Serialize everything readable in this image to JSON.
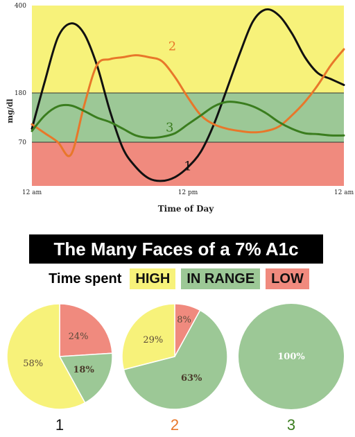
{
  "chart_data": [
    {
      "type": "line",
      "title": "",
      "xlabel": "Time of Day",
      "ylabel": "mg/dl",
      "x_ticks": [
        "12 am",
        "12 pm",
        "12 am"
      ],
      "y_ticks": [
        70,
        180,
        400
      ],
      "bands": [
        {
          "name": "LOW",
          "from": 0,
          "to": 70,
          "color": "#f08a7e"
        },
        {
          "name": "IN RANGE",
          "from": 70,
          "to": 180,
          "color": "#9cc896"
        },
        {
          "name": "HIGH",
          "from": 180,
          "to": 400,
          "color": "#f7f27a"
        }
      ],
      "series": [
        {
          "label": "1",
          "color": "#111111",
          "label_at": [
            12.0,
            25
          ],
          "x": [
            0,
            1,
            2,
            3,
            4,
            5,
            6,
            7,
            8,
            9,
            10,
            11,
            12,
            13,
            14,
            15,
            16,
            17,
            18,
            19,
            20,
            21,
            22,
            23,
            24
          ],
          "y": [
            100,
            210,
            320,
            355,
            330,
            250,
            140,
            60,
            30,
            12,
            8,
            14,
            30,
            55,
            110,
            190,
            280,
            360,
            390,
            375,
            330,
            270,
            230,
            215,
            200
          ]
        },
        {
          "label": "2",
          "color": "#e8772a",
          "label_at": [
            10.8,
            287
          ],
          "x": [
            0,
            1,
            2,
            3,
            4,
            5,
            6,
            7,
            8,
            9,
            10,
            11,
            12,
            13,
            14,
            15,
            16,
            17,
            18,
            19,
            20,
            21,
            22,
            23,
            24
          ],
          "y": [
            110,
            90,
            70,
            50,
            150,
            250,
            265,
            270,
            275,
            270,
            260,
            220,
            170,
            130,
            110,
            100,
            95,
            92,
            95,
            105,
            130,
            160,
            200,
            250,
            290
          ]
        },
        {
          "label": "3",
          "color": "#3a7d1e",
          "label_at": [
            10.6,
            94
          ],
          "x": [
            0,
            1,
            2,
            3,
            4,
            5,
            6,
            7,
            8,
            9,
            10,
            11,
            12,
            13,
            14,
            15,
            16,
            17,
            18,
            19,
            20,
            21,
            22,
            23,
            24
          ],
          "y": [
            95,
            130,
            150,
            152,
            140,
            125,
            115,
            100,
            85,
            80,
            82,
            90,
            110,
            130,
            150,
            160,
            158,
            150,
            135,
            115,
            100,
            90,
            88,
            85,
            85
          ]
        }
      ]
    },
    {
      "type": "pie",
      "title": "1",
      "title_color": "#111111",
      "slices": [
        {
          "label": "HIGH",
          "value": 58,
          "text": "58%",
          "color": "#f7f27a"
        },
        {
          "label": "LOW",
          "value": 24,
          "text": "24%",
          "color": "#f08a7e"
        },
        {
          "label": "IN RANGE",
          "value": 18,
          "text": "18%",
          "color": "#9cc896"
        }
      ]
    },
    {
      "type": "pie",
      "title": "2",
      "title_color": "#e8772a",
      "slices": [
        {
          "label": "HIGH",
          "value": 29,
          "text": "29%",
          "color": "#f7f27a"
        },
        {
          "label": "LOW",
          "value": 8,
          "text": "8%",
          "color": "#f08a7e"
        },
        {
          "label": "IN RANGE",
          "value": 63,
          "text": "63%",
          "color": "#9cc896"
        }
      ]
    },
    {
      "type": "pie",
      "title": "3",
      "title_color": "#3a7d1e",
      "slices": [
        {
          "label": "IN RANGE",
          "value": 100,
          "text": "100%",
          "color": "#9cc896"
        }
      ]
    }
  ],
  "header": {
    "title": "The Many Faces of a 7% A1c",
    "legend_label": "Time spent",
    "legend_items": [
      {
        "label": "HIGH",
        "color": "#f7f27a"
      },
      {
        "label": "IN RANGE",
        "color": "#9cc896"
      },
      {
        "label": "LOW",
        "color": "#f08a7e"
      }
    ]
  }
}
